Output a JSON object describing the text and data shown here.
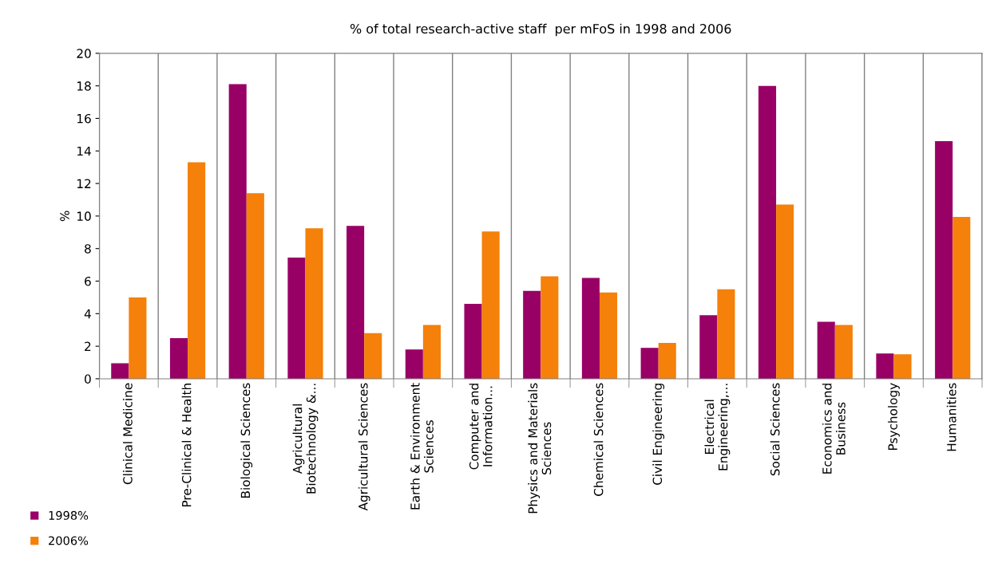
{
  "chart_data": {
    "type": "bar",
    "title": "% of total research-active staff  per mFoS in 1998 and 2006",
    "ylabel": "%",
    "categories": [
      "Clinical Medicine",
      "Pre-Clinical & Health",
      "Biological Sciences",
      "Agricultural Biotechnology &...",
      "Agricultural Sciences",
      "Earth & Environment Sciences",
      "Computer and Information...",
      "Physics and Materials Sciences",
      "Chemical Sciences",
      "Civil Engineering",
      "Electrical Engineering,...",
      "Social Sciences",
      "Economics and Business",
      "Psychology",
      "Humanities"
    ],
    "series": [
      {
        "name": "1998%",
        "color": "#990066",
        "values": [
          0.95,
          2.5,
          18.1,
          7.45,
          9.4,
          1.8,
          4.6,
          5.4,
          6.2,
          1.9,
          3.9,
          18.0,
          3.5,
          1.55,
          14.6
        ]
      },
      {
        "name": "2006%",
        "color": "#f5800a",
        "values": [
          5.0,
          13.3,
          11.4,
          9.25,
          2.8,
          3.3,
          9.05,
          6.3,
          5.3,
          2.2,
          5.5,
          10.7,
          3.3,
          1.5,
          9.95
        ]
      }
    ],
    "ylim": [
      0,
      20
    ],
    "yticks": [
      0,
      2,
      4,
      6,
      8,
      10,
      12,
      14,
      16,
      18,
      20
    ],
    "grid": "x",
    "legend": "bottom left"
  }
}
